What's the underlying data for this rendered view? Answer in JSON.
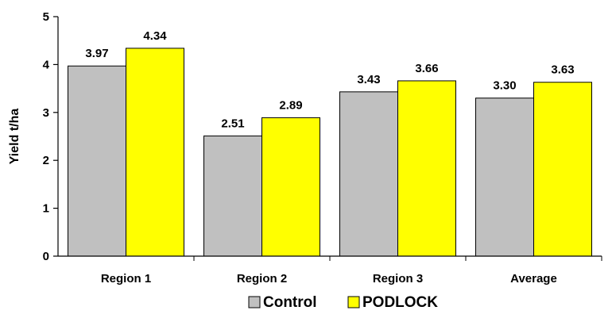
{
  "chart_data": {
    "type": "bar",
    "categories": [
      "Region 1",
      "Region 2",
      "Region 3",
      "Average"
    ],
    "series": [
      {
        "name": "Control",
        "values": [
          3.97,
          2.51,
          3.43,
          3.3
        ],
        "labels": [
          "3.97",
          "2.51",
          "3.43",
          "3.30"
        ],
        "color": "#c0c0c0"
      },
      {
        "name": "PODLOCK",
        "values": [
          4.34,
          2.89,
          3.66,
          3.63
        ],
        "labels": [
          "4.34",
          "2.89",
          "3.66",
          "3.63"
        ],
        "color": "#ffff00"
      }
    ],
    "ylabel": "Yield t/ha",
    "xlabel": "",
    "ylim": [
      0,
      5
    ],
    "yticks": [
      "0",
      "1",
      "2",
      "3",
      "4",
      "5"
    ],
    "grid": false,
    "legend": "bottom"
  }
}
